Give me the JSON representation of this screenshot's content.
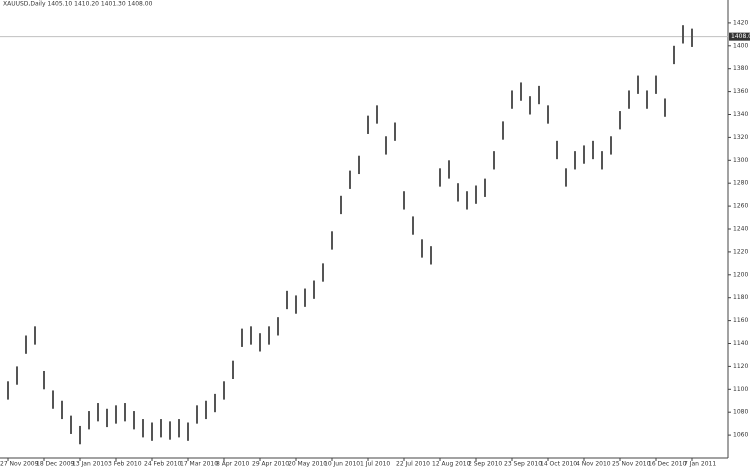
{
  "chart_data": {
    "type": "hl-bar",
    "title": "XAUUSD,Daily  1405.10 1410.20 1401.30 1408.00",
    "categories": [
      "27 Nov 2009",
      null,
      null,
      null,
      "18 Dec 2009",
      null,
      null,
      null,
      "13 Jan 2010",
      null,
      null,
      null,
      "3 Feb 2010",
      null,
      null,
      null,
      "24 Feb 2010",
      null,
      null,
      null,
      "17 Mar 2010",
      null,
      null,
      null,
      "8 Apr 2010",
      null,
      null,
      null,
      "29 Apr 2010",
      null,
      null,
      null,
      "20 May 2010",
      null,
      null,
      null,
      "10 Jun 2010",
      null,
      null,
      null,
      "1 Jul 2010",
      null,
      null,
      null,
      "22 Jul 2010",
      null,
      null,
      null,
      "12 Aug 2010",
      null,
      null,
      null,
      "2 Sep 2010",
      null,
      null,
      null,
      "23 Sep 2010",
      null,
      null,
      null,
      "14 Oct 2010",
      null,
      null,
      null,
      "4 Nov 2010",
      null,
      null,
      null,
      "25 Nov 2010",
      null,
      null,
      null,
      "16 Dec 2010",
      null,
      null,
      null,
      "7 Jan 2011"
    ],
    "high": [
      1107,
      1120,
      1147,
      1155,
      1116,
      1099,
      1090,
      1077,
      1068,
      1081,
      1088,
      1083,
      1086,
      1088,
      1081,
      1074,
      1071,
      1074,
      1072,
      1074,
      1071,
      1086,
      1090,
      1096,
      1107,
      1125,
      1153,
      1155,
      1149,
      1155,
      1163,
      1186,
      1182,
      1188,
      1195,
      1210,
      1238,
      1269,
      1291,
      1304,
      1339,
      1348,
      1321,
      1333,
      1273,
      1251,
      1231,
      1225,
      1293,
      1300,
      1280,
      1273,
      1278,
      1284,
      1308,
      1334,
      1361,
      1368,
      1356,
      1365,
      1348,
      1317,
      1293,
      1308,
      1313,
      1317,
      1308,
      1321,
      1343,
      1361,
      1374,
      1361,
      1374,
      1354,
      1400,
      1418,
      1415
    ],
    "low": [
      1091,
      1104,
      1131,
      1139,
      1100,
      1083,
      1074,
      1061,
      1052,
      1065,
      1072,
      1067,
      1070,
      1072,
      1065,
      1058,
      1055,
      1058,
      1056,
      1058,
      1055,
      1070,
      1074,
      1080,
      1091,
      1109,
      1137,
      1139,
      1133,
      1139,
      1147,
      1170,
      1166,
      1172,
      1179,
      1194,
      1222,
      1253,
      1275,
      1288,
      1323,
      1332,
      1305,
      1317,
      1257,
      1235,
      1215,
      1209,
      1277,
      1284,
      1264,
      1257,
      1262,
      1268,
      1292,
      1318,
      1345,
      1352,
      1340,
      1349,
      1332,
      1301,
      1277,
      1292,
      1297,
      1301,
      1292,
      1305,
      1327,
      1345,
      1358,
      1345,
      1358,
      1338,
      1384,
      1402,
      1399
    ],
    "color": "#555555",
    "current_price": {
      "value": 1408,
      "label": "1408.00"
    },
    "ylim": [
      1040,
      1440
    ],
    "yticks": [
      1060,
      1080,
      1100,
      1120,
      1140,
      1160,
      1180,
      1200,
      1220,
      1240,
      1260,
      1280,
      1300,
      1320,
      1340,
      1360,
      1380,
      1400,
      1420
    ]
  }
}
